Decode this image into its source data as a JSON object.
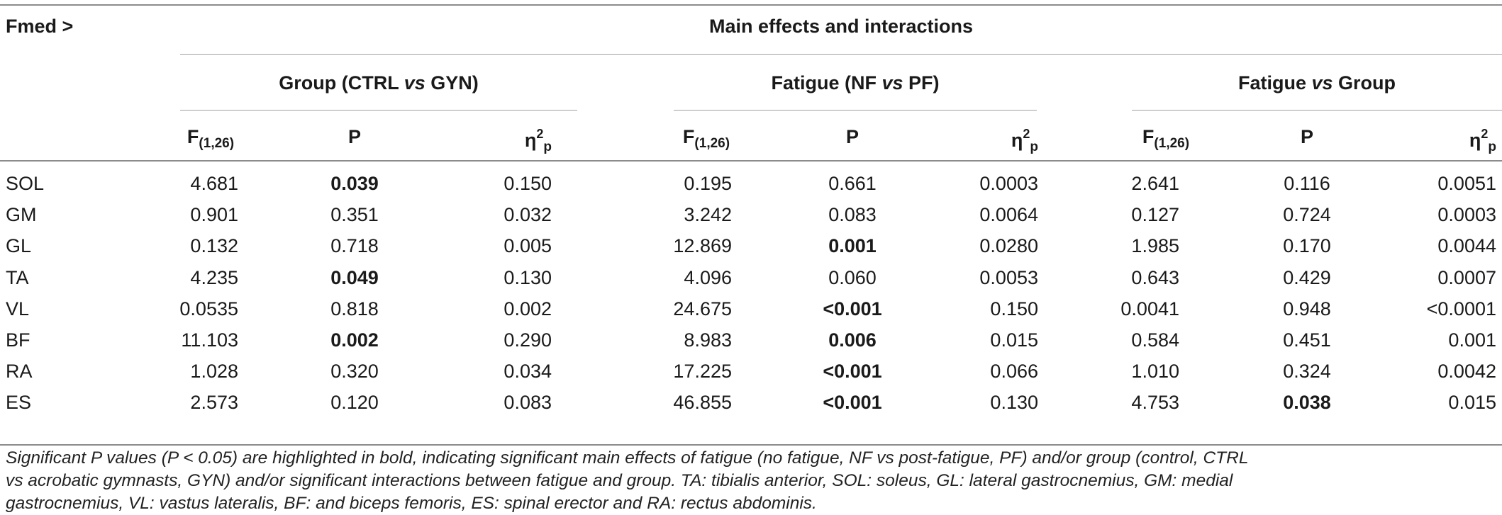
{
  "corner_label": "Fmed >",
  "main_header": "Main effects and interactions",
  "groups": [
    {
      "pre": "Group (CTRL ",
      "mid": "vs",
      "post": " GYN)"
    },
    {
      "pre": "Fatigue (NF ",
      "mid": "vs",
      "post": " PF)"
    },
    {
      "pre": "Fatigue ",
      "mid": "vs",
      "post": " Group"
    }
  ],
  "col_headers": {
    "f_letter": "F",
    "f_sub": "(1,26)",
    "p": "P",
    "eta": "η",
    "eta_sup": "2",
    "eta_sub": "p"
  },
  "rows": [
    {
      "muscle": "SOL",
      "cells": [
        {
          "v": "4.681",
          "b": false
        },
        {
          "v": "0.039",
          "b": true
        },
        {
          "v": "0.150",
          "b": false
        },
        {
          "v": "0.195",
          "b": false
        },
        {
          "v": "0.661",
          "b": false
        },
        {
          "v": "0.0003",
          "b": false
        },
        {
          "v": "2.641",
          "b": false
        },
        {
          "v": "0.116",
          "b": false
        },
        {
          "v": "0.0051",
          "b": false
        }
      ]
    },
    {
      "muscle": "GM",
      "cells": [
        {
          "v": "0.901",
          "b": false
        },
        {
          "v": "0.351",
          "b": false
        },
        {
          "v": "0.032",
          "b": false
        },
        {
          "v": "3.242",
          "b": false
        },
        {
          "v": "0.083",
          "b": false
        },
        {
          "v": "0.0064",
          "b": false
        },
        {
          "v": "0.127",
          "b": false
        },
        {
          "v": "0.724",
          "b": false
        },
        {
          "v": "0.0003",
          "b": false
        }
      ]
    },
    {
      "muscle": "GL",
      "cells": [
        {
          "v": "0.132",
          "b": false
        },
        {
          "v": "0.718",
          "b": false
        },
        {
          "v": "0.005",
          "b": false
        },
        {
          "v": "12.869",
          "b": false
        },
        {
          "v": "0.001",
          "b": true
        },
        {
          "v": "0.0280",
          "b": false
        },
        {
          "v": "1.985",
          "b": false
        },
        {
          "v": "0.170",
          "b": false
        },
        {
          "v": "0.0044",
          "b": false
        }
      ]
    },
    {
      "muscle": "TA",
      "cells": [
        {
          "v": "4.235",
          "b": false
        },
        {
          "v": "0.049",
          "b": true
        },
        {
          "v": "0.130",
          "b": false
        },
        {
          "v": "4.096",
          "b": false
        },
        {
          "v": "0.060",
          "b": false
        },
        {
          "v": "0.0053",
          "b": false
        },
        {
          "v": "0.643",
          "b": false
        },
        {
          "v": "0.429",
          "b": false
        },
        {
          "v": "0.0007",
          "b": false
        }
      ]
    },
    {
      "muscle": "VL",
      "cells": [
        {
          "v": "0.0535",
          "b": false
        },
        {
          "v": "0.818",
          "b": false
        },
        {
          "v": "0.002",
          "b": false
        },
        {
          "v": "24.675",
          "b": false
        },
        {
          "v": "<0.001",
          "b": true
        },
        {
          "v": "0.150",
          "b": false
        },
        {
          "v": "0.0041",
          "b": false
        },
        {
          "v": "0.948",
          "b": false
        },
        {
          "v": "<0.0001",
          "b": false
        }
      ]
    },
    {
      "muscle": "BF",
      "cells": [
        {
          "v": "11.103",
          "b": false
        },
        {
          "v": "0.002",
          "b": true
        },
        {
          "v": "0.290",
          "b": false
        },
        {
          "v": "8.983",
          "b": false
        },
        {
          "v": "0.006",
          "b": true
        },
        {
          "v": "0.015",
          "b": false
        },
        {
          "v": "0.584",
          "b": false
        },
        {
          "v": "0.451",
          "b": false
        },
        {
          "v": "0.001",
          "b": false
        }
      ]
    },
    {
      "muscle": "RA",
      "cells": [
        {
          "v": "1.028",
          "b": false
        },
        {
          "v": "0.320",
          "b": false
        },
        {
          "v": "0.034",
          "b": false
        },
        {
          "v": "17.225",
          "b": false
        },
        {
          "v": "<0.001",
          "b": true
        },
        {
          "v": "0.066",
          "b": false
        },
        {
          "v": "1.010",
          "b": false
        },
        {
          "v": "0.324",
          "b": false
        },
        {
          "v": "0.0042",
          "b": false
        }
      ]
    },
    {
      "muscle": "ES",
      "cells": [
        {
          "v": "2.573",
          "b": false
        },
        {
          "v": "0.120",
          "b": false
        },
        {
          "v": "0.083",
          "b": false
        },
        {
          "v": "46.855",
          "b": false
        },
        {
          "v": "<0.001",
          "b": true
        },
        {
          "v": "0.130",
          "b": false
        },
        {
          "v": "4.753",
          "b": false
        },
        {
          "v": "0.038",
          "b": true
        },
        {
          "v": "0.015",
          "b": false
        }
      ]
    }
  ],
  "footnote": [
    "Significant P values (P < 0.05) are highlighted in bold, indicating significant main effects of fatigue (no fatigue, NF vs post-fatigue, PF) and/or group (control, CTRL",
    "vs acrobatic gymnasts, GYN) and/or significant interactions between fatigue and group. TA: tibialis anterior, SOL: soleus, GL: lateral gastrocnemius, GM: medial",
    "gastrocnemius, VL: vastus lateralis, BF: and biceps femoris, ES: spinal erector and RA: rectus abdominis."
  ]
}
